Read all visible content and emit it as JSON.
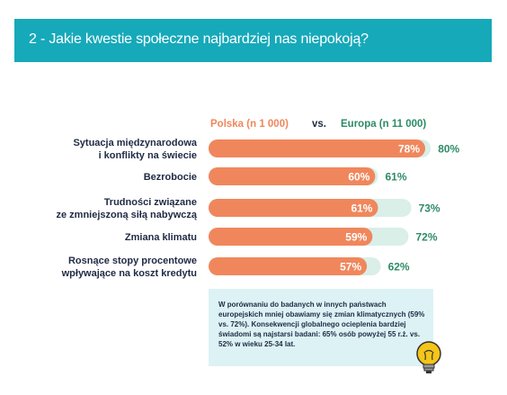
{
  "header": {
    "title": "2 - Jakie kwestie społeczne najbardziej nas niepokoją?"
  },
  "chart_data": {
    "type": "bar",
    "legend": {
      "poland_label": "Polska (n 1 000)",
      "vs": "vs.",
      "europe_label": "Europa (n 11 000)",
      "placement": "top"
    },
    "categories": [
      [
        "Sytuacja międzynarodowa",
        "i konflikty na świecie"
      ],
      [
        "Bezrobocie"
      ],
      [
        "Trudności związane",
        "ze zmniejszoną siłą nabywczą"
      ],
      [
        "Zmiana klimatu"
      ],
      [
        "Rosnące stopy procentowe",
        "wpływające na koszt kredytu"
      ]
    ],
    "series": [
      {
        "name": "Polska (n 1 000)",
        "values": [
          78,
          60,
          61,
          59,
          57
        ],
        "labels": [
          "78%",
          "60%",
          "61%",
          "59%",
          "57%"
        ]
      },
      {
        "name": "Europa (n 11 000)",
        "values": [
          80,
          61,
          73,
          72,
          62
        ],
        "labels": [
          "80%",
          "61%",
          "73%",
          "72%",
          "62%"
        ]
      }
    ],
    "colors": {
      "poland": "#f0875c",
      "europe": "#d9efe8",
      "europe_text": "#2e8b66",
      "poland_text": "#f0875c"
    },
    "xlim": [
      0,
      100
    ]
  },
  "note": {
    "text": "W porównaniu do badanych w innych państwach europejskich mniej obawiamy się zmian klimatycznych (59% vs. 72%). Konsekwencji globalnego ocieplenia bardziej świadomi są najstarsi badani: 65% osób powyżej 55 r.ż. vs. 52% w wieku 25-34 lat.",
    "icon": "lightbulb-icon"
  }
}
